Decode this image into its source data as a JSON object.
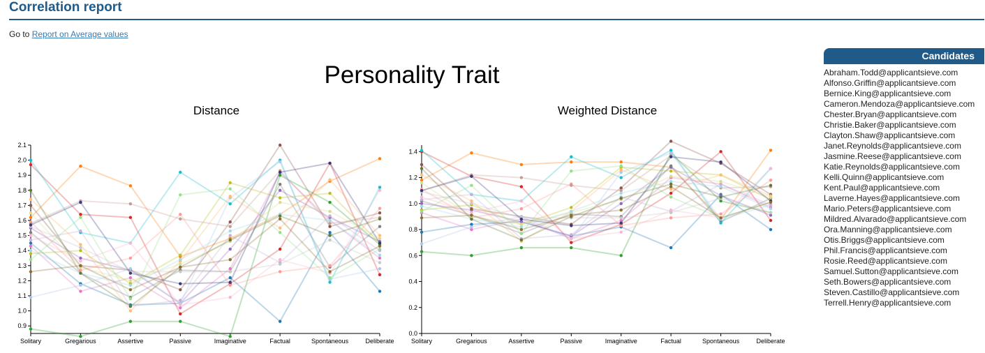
{
  "page": {
    "title": "Correlation report",
    "goto_prefix": "Go to",
    "goto_link": "Report on Average values",
    "main_title": "Personality Trait"
  },
  "candidates": {
    "header": "Candidates",
    "items": [
      "Abraham.Todd@applicantsieve.com",
      "Alfonso.Griffin@applicantsieve.com",
      "Bernice.King@applicantsieve.com",
      "Cameron.Mendoza@applicantsieve.com",
      "Chester.Bryan@applicantsieve.com",
      "Christie.Baker@applicantsieve.com",
      "Clayton.Shaw@applicantsieve.com",
      "Janet.Reynolds@applicantsieve.com",
      "Jasmine.Reese@applicantsieve.com",
      "Katie.Reynolds@applicantsieve.com",
      "Kelli.Quinn@applicantsieve.com",
      "Kent.Paul@applicantsieve.com",
      "Laverne.Hayes@applicantsieve.com",
      "Mario.Peters@applicantsieve.com",
      "Mildred.Alvarado@applicantsieve.com",
      "Ora.Manning@applicantsieve.com",
      "Otis.Briggs@applicantsieve.com",
      "Phil.Francis@applicantsieve.com",
      "Rosie.Reed@applicantsieve.com",
      "Samuel.Sutton@applicantsieve.com",
      "Seth.Bowers@applicantsieve.com",
      "Steven.Castillo@applicantsieve.com",
      "Terrell.Henry@applicantsieve.com"
    ]
  },
  "colors": [
    "#1f77b4",
    "#ff7f0e",
    "#2ca02c",
    "#d62728",
    "#9467bd",
    "#8c564b",
    "#e377c2",
    "#7f7f7f",
    "#bcbd22",
    "#17becf",
    "#aec7e8",
    "#ffbb78",
    "#98df8a",
    "#ff9896",
    "#c5b0d5",
    "#c49c94",
    "#f7b6d2",
    "#c7c7c7",
    "#dbdb8d",
    "#9edae5",
    "#393b79",
    "#637939",
    "#8c6d31"
  ],
  "chart_data": [
    {
      "type": "line",
      "title": "Distance",
      "categories": [
        "Solitary",
        "Gregarious",
        "Assertive",
        "Passive",
        "Imaginative",
        "Factual",
        "Spontaneous",
        "Deliberate"
      ],
      "yticks": [
        "0.9",
        "1.0",
        "1.1",
        "1.2",
        "1.3",
        "1.4",
        "1.5",
        "1.6",
        "1.7",
        "1.8",
        "1.9",
        "2.0",
        "2.1"
      ],
      "ylim": [
        0.85,
        2.1
      ],
      "series": [
        {
          "values": [
            1.45,
            1.18,
            1.04,
            1.05,
            1.22,
            0.93,
            1.52,
            1.13
          ]
        },
        {
          "values": [
            1.62,
            1.96,
            1.83,
            1.36,
            1.48,
            1.64,
            1.86,
            2.01
          ]
        },
        {
          "values": [
            0.88,
            0.83,
            0.93,
            0.93,
            0.83,
            1.9,
            1.72,
            1.44
          ]
        },
        {
          "values": [
            1.97,
            1.64,
            1.62,
            0.98,
            1.18,
            1.41,
            1.98,
            1.24
          ]
        },
        {
          "values": [
            1.55,
            1.35,
            1.27,
            1.05,
            1.41,
            1.8,
            1.62,
            1.46
          ]
        },
        {
          "values": [
            1.7,
            1.3,
            1.27,
            1.14,
            1.59,
            2.1,
            1.56,
            1.65
          ]
        },
        {
          "values": [
            1.43,
            1.13,
            1.22,
            1.02,
            1.28,
            1.92,
            1.6,
            1.35
          ]
        },
        {
          "values": [
            1.52,
            1.25,
            1.09,
            1.27,
            1.26,
            1.84,
            1.29,
            1.56
          ]
        },
        {
          "values": [
            1.38,
            1.4,
            1.18,
            1.37,
            1.85,
            1.75,
            1.78,
            1.45
          ]
        },
        {
          "values": [
            2.0,
            1.52,
            1.45,
            1.92,
            1.71,
            2.0,
            1.19,
            1.82
          ]
        },
        {
          "values": [
            1.09,
            1.17,
            1.28,
            1.05,
            1.75,
            1.99,
            1.21,
            1.28
          ]
        },
        {
          "values": [
            1.74,
            1.44,
            1.0,
            1.33,
            1.76,
            1.55,
            1.87,
            1.5
          ]
        },
        {
          "values": [
            1.34,
            1.62,
            1.08,
            1.77,
            1.81,
            1.52,
            1.22,
            1.41
          ]
        },
        {
          "values": [
            1.59,
            1.27,
            1.35,
            1.64,
            1.17,
            1.26,
            1.3,
            1.68
          ]
        },
        {
          "values": [
            1.47,
            1.53,
            1.03,
            1.07,
            1.5,
            1.32,
            1.63,
            1.4
          ]
        },
        {
          "values": [
            1.58,
            1.73,
            1.71,
            1.61,
            1.56,
            1.93,
            1.58,
            1.62
          ]
        },
        {
          "values": [
            1.5,
            1.33,
            1.45,
            1.04,
            1.09,
            1.34,
            1.25,
            1.8
          ]
        },
        {
          "values": [
            1.56,
            1.42,
            1.26,
            1.26,
            1.26,
            1.31,
            1.47,
            1.32
          ]
        },
        {
          "values": [
            1.65,
            1.29,
            1.2,
            1.31,
            1.46,
            1.72,
            1.66,
            1.48
          ]
        },
        {
          "values": [
            1.4,
            1.25,
            1.17,
            1.34,
            1.53,
            1.64,
            1.6,
            1.37
          ]
        },
        {
          "values": [
            1.57,
            1.72,
            1.25,
            1.18,
            1.19,
            1.92,
            1.98,
            1.45
          ]
        },
        {
          "values": [
            1.8,
            1.25,
            1.03,
            1.29,
            1.47,
            1.63,
            1.5,
            1.61
          ]
        },
        {
          "values": [
            1.26,
            1.3,
            1.14,
            1.29,
            1.34,
            1.61,
            1.26,
            1.43
          ]
        }
      ]
    },
    {
      "type": "line",
      "title": "Weighted Distance",
      "categories": [
        "Solitary",
        "Gregarious",
        "Assertive",
        "Passive",
        "Imaginative",
        "Factual",
        "Spontaneous",
        "Deliberate"
      ],
      "yticks": [
        "0.0",
        "0.2",
        "0.4",
        "0.6",
        "0.8",
        "1.0",
        "1.2",
        "1.4"
      ],
      "ylim": [
        0.0,
        1.45
      ],
      "series": [
        {
          "values": [
            0.78,
            0.84,
            0.86,
            0.75,
            0.82,
            0.66,
            1.07,
            0.8
          ]
        },
        {
          "values": [
            1.18,
            1.39,
            1.3,
            1.32,
            1.32,
            1.28,
            0.88,
            1.41
          ]
        },
        {
          "values": [
            0.63,
            0.6,
            0.66,
            0.66,
            0.6,
            1.39,
            1.02,
            0.93
          ]
        },
        {
          "values": [
            1.4,
            1.21,
            1.13,
            0.7,
            0.84,
            1.08,
            1.4,
            0.87
          ]
        },
        {
          "values": [
            1.0,
            0.95,
            0.86,
            0.75,
            1.0,
            1.28,
            1.06,
            0.91
          ]
        },
        {
          "values": [
            1.3,
            0.96,
            0.9,
            0.84,
            1.12,
            1.48,
            1.31,
            1.07
          ]
        },
        {
          "values": [
            0.93,
            0.8,
            0.88,
            0.73,
            0.87,
            1.2,
            1.15,
            0.97
          ]
        },
        {
          "values": [
            1.02,
            0.91,
            0.77,
            0.92,
            0.9,
            1.29,
            0.86,
            1.04
          ]
        },
        {
          "values": [
            0.95,
            0.99,
            0.84,
            0.97,
            1.28,
            1.25,
            1.22,
            1.03
          ]
        },
        {
          "values": [
            1.41,
            1.07,
            1.02,
            1.36,
            1.2,
            1.41,
            0.85,
            1.27
          ]
        },
        {
          "values": [
            0.69,
            0.82,
            0.9,
            0.73,
            1.24,
            1.39,
            0.88,
            0.99
          ]
        },
        {
          "values": [
            1.22,
            1.02,
            0.71,
            0.94,
            1.26,
            1.11,
            1.22,
            1.06
          ]
        },
        {
          "values": [
            0.94,
            1.14,
            0.77,
            1.25,
            1.29,
            1.05,
            0.89,
            1.01
          ]
        },
        {
          "values": [
            1.11,
            0.89,
            0.96,
            1.15,
            0.83,
            0.89,
            0.92,
            1.18
          ]
        },
        {
          "values": [
            1.03,
            1.07,
            0.73,
            0.76,
            1.05,
            0.94,
            1.15,
            0.99
          ]
        },
        {
          "values": [
            1.1,
            1.22,
            1.2,
            1.14,
            1.1,
            1.37,
            1.12,
            1.13
          ]
        },
        {
          "values": [
            1.05,
            0.93,
            1.02,
            0.73,
            0.78,
            0.95,
            0.89,
            1.27
          ]
        },
        {
          "values": [
            1.09,
            1.0,
            0.89,
            0.89,
            0.89,
            0.93,
            1.04,
            0.93
          ]
        },
        {
          "values": [
            1.16,
            0.9,
            0.84,
            0.93,
            1.03,
            1.21,
            1.17,
            1.05
          ]
        },
        {
          "values": [
            0.98,
            0.88,
            0.82,
            0.94,
            1.08,
            1.17,
            1.13,
            0.96
          ]
        },
        {
          "values": [
            1.1,
            1.21,
            0.88,
            0.83,
            0.85,
            1.36,
            1.32,
            1.02
          ]
        },
        {
          "values": [
            1.27,
            0.88,
            0.72,
            0.9,
            1.04,
            1.15,
            1.05,
            1.14
          ]
        },
        {
          "values": [
            0.89,
            0.91,
            0.8,
            0.91,
            0.95,
            1.13,
            0.89,
            1.01
          ]
        }
      ]
    }
  ]
}
